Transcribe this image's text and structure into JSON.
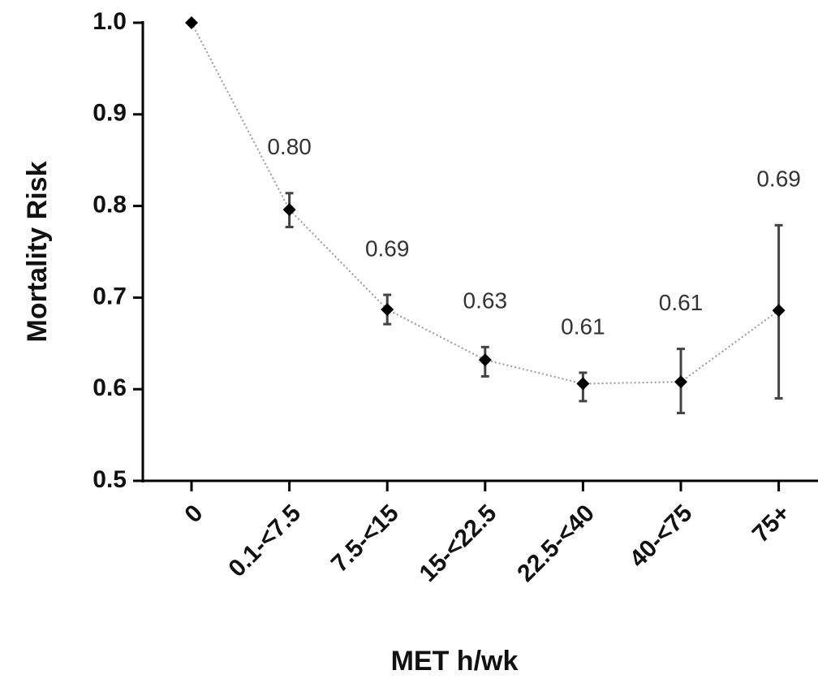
{
  "chart_data": {
    "type": "line",
    "y_label": "Mortality Risk",
    "x_label": "MET h/wk",
    "categories": [
      "0",
      "0.1-<7.5",
      "7.5-<15",
      "15-<22.5",
      "22.5-<40",
      "40-<75",
      "75+"
    ],
    "series": [
      {
        "color": "#000000",
        "values": [
          1.0,
          0.796,
          0.687,
          0.632,
          0.606,
          0.608,
          0.686
        ],
        "value_labels": [
          null,
          "0.80",
          "0.69",
          "0.63",
          "0.61",
          "0.61",
          "0.69"
        ],
        "error_lower": [
          null,
          0.777,
          0.671,
          0.614,
          0.587,
          0.574,
          0.59
        ],
        "error_upper": [
          null,
          0.814,
          0.703,
          0.646,
          0.618,
          0.644,
          0.779
        ]
      }
    ],
    "ylim": [
      0.5,
      1.0
    ],
    "yticks": [
      0.5,
      0.6,
      0.7,
      0.8,
      0.9,
      {
        "value": 1.0,
        "label": "1.0"
      }
    ],
    "grid": false
  }
}
